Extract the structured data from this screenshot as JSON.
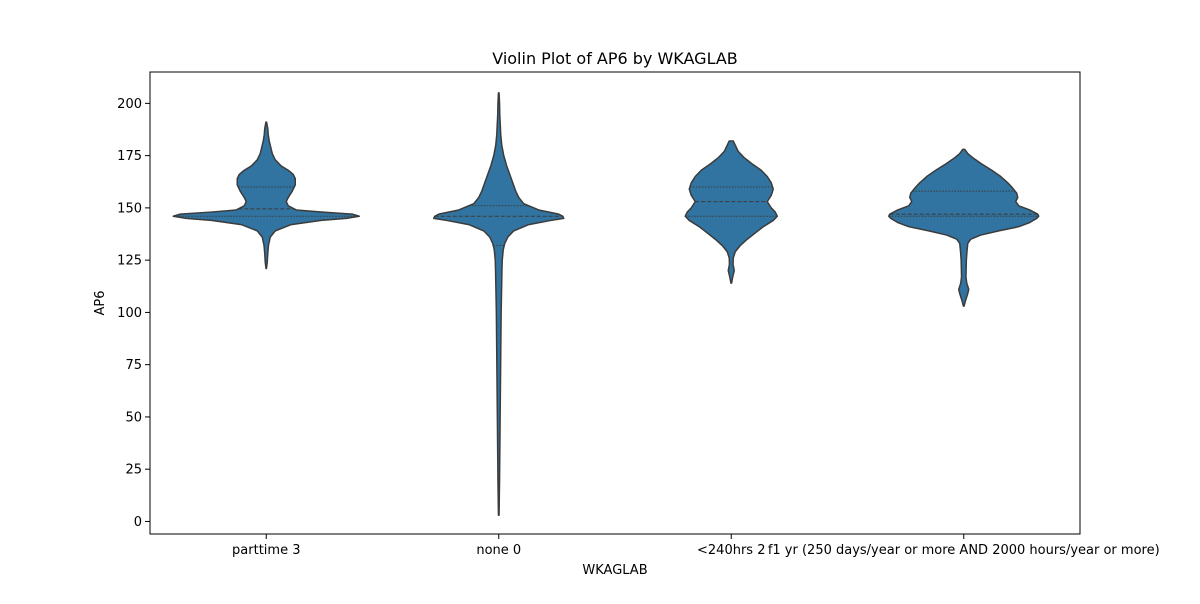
{
  "chart_data": {
    "type": "violin",
    "title": "Violin Plot of AP6 by WKAGLAB",
    "xlabel": "WKAGLAB",
    "ylabel": "AP6",
    "categories": [
      "parttime 3",
      "none 0",
      "<240hrs 2",
      "f1 yr (250 days/year or more AND 2000 hours/year or more)"
    ],
    "ylim": [
      -6,
      215
    ],
    "yticks": [
      0,
      25,
      50,
      75,
      100,
      125,
      150,
      175,
      200
    ],
    "grid": false,
    "legend": "none",
    "violin_color": "#3274a1",
    "edge_color": "#3b3b3b",
    "violins": [
      {
        "category": "parttime 3",
        "min": 121,
        "max": 191,
        "quartiles": [
          146,
          149.5,
          160
        ],
        "profile": [
          [
            121,
            0.2
          ],
          [
            124,
            1
          ],
          [
            128,
            1.5
          ],
          [
            132,
            2.2
          ],
          [
            136,
            4
          ],
          [
            139,
            9
          ],
          [
            142,
            25
          ],
          [
            144,
            55
          ],
          [
            145,
            80
          ],
          [
            146,
            93
          ],
          [
            147,
            86
          ],
          [
            148,
            55
          ],
          [
            149,
            30
          ],
          [
            151,
            22
          ],
          [
            153,
            20
          ],
          [
            155,
            22
          ],
          [
            158,
            26
          ],
          [
            161,
            29
          ],
          [
            164,
            29
          ],
          [
            166,
            27
          ],
          [
            168,
            22
          ],
          [
            170,
            15
          ],
          [
            173,
            9
          ],
          [
            176,
            6
          ],
          [
            179,
            4.5
          ],
          [
            182,
            3
          ],
          [
            185,
            2
          ],
          [
            188,
            1.5
          ],
          [
            191,
            0.3
          ]
        ]
      },
      {
        "category": "none 0",
        "min": 3,
        "max": 205,
        "quartiles": [
          132,
          146,
          151
        ],
        "profile": [
          [
            3,
            0.3
          ],
          [
            20,
            0.8
          ],
          [
            40,
            1.2
          ],
          [
            60,
            1.6
          ],
          [
            80,
            2
          ],
          [
            100,
            2.4
          ],
          [
            110,
            2.8
          ],
          [
            120,
            3.2
          ],
          [
            125,
            3.5
          ],
          [
            130,
            4.5
          ],
          [
            133,
            6
          ],
          [
            136,
            9
          ],
          [
            139,
            15
          ],
          [
            142,
            30
          ],
          [
            144,
            52
          ],
          [
            145,
            65
          ],
          [
            146,
            64
          ],
          [
            147,
            60
          ],
          [
            149,
            40
          ],
          [
            152,
            25
          ],
          [
            155,
            20
          ],
          [
            158,
            17
          ],
          [
            162,
            14
          ],
          [
            166,
            11
          ],
          [
            170,
            8
          ],
          [
            175,
            5
          ],
          [
            180,
            3
          ],
          [
            185,
            2
          ],
          [
            190,
            1.5
          ],
          [
            195,
            1
          ],
          [
            200,
            0.8
          ],
          [
            205,
            0.3
          ]
        ]
      },
      {
        "category": "<240hrs 2",
        "min": 114,
        "max": 182,
        "quartiles": [
          146,
          153,
          160
        ],
        "profile": [
          [
            114,
            0.3
          ],
          [
            117,
            1.5
          ],
          [
            120,
            3
          ],
          [
            123,
            1.8
          ],
          [
            126,
            2
          ],
          [
            129,
            4
          ],
          [
            132,
            9
          ],
          [
            135,
            16
          ],
          [
            138,
            24
          ],
          [
            141,
            32
          ],
          [
            144,
            42
          ],
          [
            146,
            46
          ],
          [
            148,
            44
          ],
          [
            150,
            40
          ],
          [
            153,
            36
          ],
          [
            156,
            40
          ],
          [
            159,
            42
          ],
          [
            162,
            40
          ],
          [
            165,
            36
          ],
          [
            168,
            30
          ],
          [
            171,
            21
          ],
          [
            174,
            13
          ],
          [
            177,
            7
          ],
          [
            180,
            4
          ],
          [
            182,
            2
          ]
        ]
      },
      {
        "category": "f1 yr (250 days/year or more AND 2000 hours/year or more)",
        "min": 103,
        "max": 178,
        "quartiles": [
          146,
          147,
          158
        ],
        "profile": [
          [
            103,
            0.3
          ],
          [
            106,
            2
          ],
          [
            109,
            4
          ],
          [
            111,
            5
          ],
          [
            114,
            3
          ],
          [
            117,
            2.2
          ],
          [
            121,
            2.4
          ],
          [
            125,
            2.6
          ],
          [
            129,
            3.2
          ],
          [
            133,
            4
          ],
          [
            135,
            7
          ],
          [
            137,
            17
          ],
          [
            139,
            35
          ],
          [
            141,
            55
          ],
          [
            143,
            66
          ],
          [
            145,
            73
          ],
          [
            146,
            75
          ],
          [
            147,
            74
          ],
          [
            149,
            66
          ],
          [
            151,
            55
          ],
          [
            153,
            52
          ],
          [
            155,
            54
          ],
          [
            157,
            53
          ],
          [
            160,
            48
          ],
          [
            162,
            44
          ],
          [
            165,
            37
          ],
          [
            168,
            28
          ],
          [
            171,
            18
          ],
          [
            174,
            9
          ],
          [
            176,
            4
          ],
          [
            178,
            1
          ]
        ]
      }
    ]
  }
}
